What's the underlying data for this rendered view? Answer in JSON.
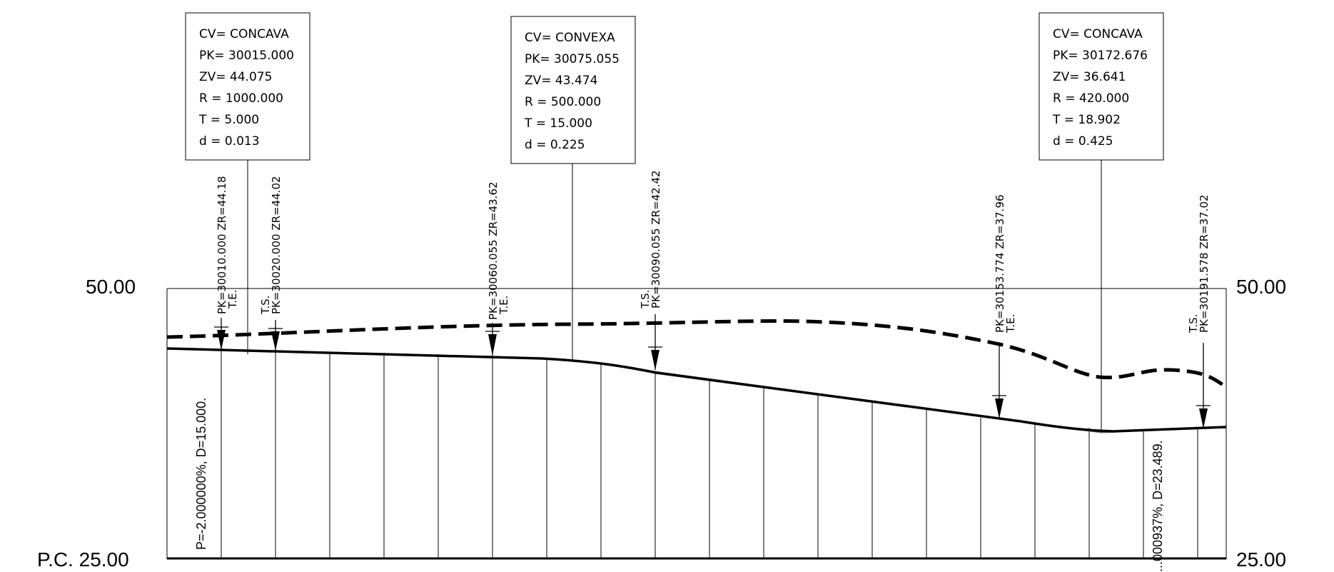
{
  "axis": {
    "top_left": "50.00",
    "top_right": "50.00",
    "bottom_left": "P.C. 25.00",
    "bottom_right": "25.00"
  },
  "curves": [
    {
      "lines": [
        "CV= CONCAVA",
        "PK= 30015.000",
        "ZV= 44.075",
        "R  = 1000.000",
        "T  = 5.000",
        "d  = 0.013"
      ]
    },
    {
      "lines": [
        "CV= CONVEXA",
        "PK= 30075.055",
        "ZV= 43.474",
        "R  = 500.000",
        "T  = 15.000",
        "d  = 0.225"
      ]
    },
    {
      "lines": [
        "CV= CONCAVA",
        "PK= 30172.676",
        "ZV= 36.641",
        "R  = 420.000",
        "T  = 18.902",
        "d  = 0.425"
      ]
    }
  ],
  "points": [
    {
      "pk": "PK=30010.000  ZR=44.18",
      "tag": "T.E."
    },
    {
      "pk": "PK=30020.000  ZR=44.02",
      "tag": "T.S."
    },
    {
      "pk": "PK=30060.055  ZR=43.62",
      "tag": "T.E."
    },
    {
      "pk": "PK=30090.055  ZR=42.42",
      "tag": "T.S."
    },
    {
      "pk": "PK=30153.774  ZR=37.96",
      "tag": "T.E."
    },
    {
      "pk": "PK=30191.578  ZR=37.02",
      "tag": "T.S."
    }
  ],
  "slopes": [
    {
      "text": "P=-2.000000%, D=15.000."
    },
    {
      "text": "...000937%, D=23.489."
    }
  ]
}
